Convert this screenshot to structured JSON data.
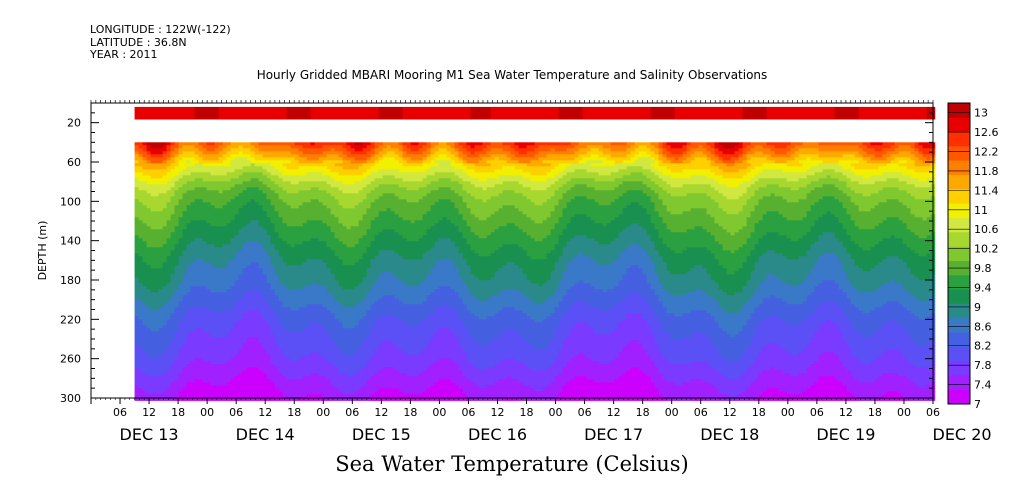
{
  "header": {
    "longitude": "LONGITUDE : 122W(-122)",
    "latitude": "LATITUDE : 36.8N",
    "year": "YEAR : 2011"
  },
  "chart_data": {
    "type": "heatmap",
    "title": "Hourly Gridded MBARI Mooring M1 Sea Water Temperature and Salinity Observations",
    "variable_label": "Sea Water Temperature (Celsius)",
    "ylabel": "DEPTH (m)",
    "y_axis": {
      "ylim": [
        300,
        0
      ],
      "ticks": [
        20,
        60,
        100,
        140,
        180,
        220,
        260,
        300
      ],
      "minor_step": 10
    },
    "x_axis": {
      "start_hour": "DEC 13 00",
      "end_hour": "DEC 20 06",
      "major_tick_hours": 6,
      "hour_labels": [
        "06",
        "12",
        "18",
        "00"
      ],
      "day_labels": [
        "DEC 13",
        "DEC 14",
        "DEC 15",
        "DEC 16",
        "DEC 17",
        "DEC 18",
        "DEC 19",
        "DEC 20"
      ]
    },
    "data_extent": {
      "start_hour_offset": 9,
      "surface_band_depth": [
        4,
        14
      ],
      "main_start_depth": 40,
      "main_end_depth": 300
    },
    "colorbar": {
      "min": 7.0,
      "max": 13.2,
      "labels": [
        7,
        7.4,
        7.8,
        8.2,
        8.6,
        9,
        9.4,
        9.8,
        10.2,
        10.6,
        11,
        11.4,
        11.8,
        12.2,
        12.6,
        13
      ],
      "label_texts": [
        "7",
        "7.4",
        "7.8",
        "8.2",
        "8.6",
        "9",
        "9.4",
        "9.8",
        "10.2",
        "10.6",
        "11",
        "11.4",
        "11.8",
        "12.2",
        "12.6",
        "13"
      ],
      "colors": [
        "#cc00ff",
        "#a020ff",
        "#7a3aff",
        "#5a50f5",
        "#4560e0",
        "#3a78c8",
        "#2a8a8a",
        "#1a9050",
        "#2aa040",
        "#58b030",
        "#80c830",
        "#a8d830",
        "#d0e840",
        "#f0f000",
        "#ffd000",
        "#ffa800",
        "#ff8000",
        "#ff5800",
        "#ff3000",
        "#e80000",
        "#c00000"
      ]
    },
    "series": [
      {
        "description_profile_depths": [
          40,
          50,
          60,
          70,
          80,
          90,
          100,
          120,
          140,
          160,
          180,
          200,
          220,
          240,
          260,
          280,
          300
        ],
        "mean_temperature": [
          12.3,
          11.8,
          11.2,
          10.8,
          10.4,
          10.1,
          9.9,
          9.6,
          9.3,
          9.0,
          8.8,
          8.5,
          8.2,
          8.0,
          7.8,
          7.5,
          7.2
        ]
      }
    ],
    "surface_temperature": 12.8
  }
}
